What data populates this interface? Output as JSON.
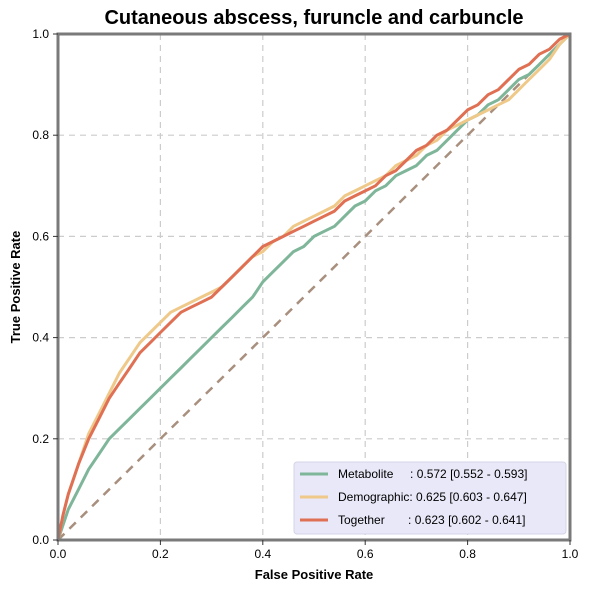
{
  "chart_data": {
    "type": "line",
    "title": "Cutaneous abscess, furuncle and carbuncle",
    "xlabel": "False Positive Rate",
    "ylabel": "True Positive Rate",
    "xlim": [
      0,
      1
    ],
    "ylim": [
      0,
      1
    ],
    "xticks": [
      "0.0",
      "0.2",
      "0.4",
      "0.6",
      "0.8",
      "1.0"
    ],
    "yticks": [
      "0.0",
      "0.2",
      "0.4",
      "0.6",
      "0.8",
      "1.0"
    ],
    "grid": true,
    "legend_position": "bottom-right",
    "series": [
      {
        "name": "Metabolite",
        "legend_label": "Metabolite     : 0.572 [0.552 - 0.593]",
        "color": "#7fb69a",
        "x": [
          0,
          0.01,
          0.02,
          0.04,
          0.06,
          0.08,
          0.1,
          0.12,
          0.14,
          0.16,
          0.18,
          0.2,
          0.22,
          0.24,
          0.26,
          0.28,
          0.3,
          0.32,
          0.34,
          0.36,
          0.38,
          0.4,
          0.42,
          0.44,
          0.46,
          0.48,
          0.5,
          0.52,
          0.54,
          0.56,
          0.58,
          0.6,
          0.62,
          0.64,
          0.66,
          0.68,
          0.7,
          0.72,
          0.74,
          0.76,
          0.78,
          0.8,
          0.82,
          0.84,
          0.86,
          0.88,
          0.9,
          0.92,
          0.94,
          0.96,
          0.98,
          1.0
        ],
        "y": [
          0,
          0.03,
          0.06,
          0.1,
          0.14,
          0.17,
          0.2,
          0.22,
          0.24,
          0.26,
          0.28,
          0.3,
          0.32,
          0.34,
          0.36,
          0.38,
          0.4,
          0.42,
          0.44,
          0.46,
          0.48,
          0.51,
          0.53,
          0.55,
          0.57,
          0.58,
          0.6,
          0.61,
          0.62,
          0.64,
          0.66,
          0.67,
          0.69,
          0.7,
          0.72,
          0.73,
          0.74,
          0.76,
          0.77,
          0.79,
          0.81,
          0.83,
          0.84,
          0.86,
          0.87,
          0.89,
          0.91,
          0.92,
          0.94,
          0.96,
          0.98,
          1.0
        ]
      },
      {
        "name": "Demographic",
        "legend_label": "Demographic: 0.625 [0.603 - 0.647]",
        "color": "#efc98a",
        "x": [
          0,
          0.01,
          0.02,
          0.04,
          0.06,
          0.08,
          0.1,
          0.12,
          0.14,
          0.16,
          0.18,
          0.2,
          0.22,
          0.24,
          0.26,
          0.28,
          0.3,
          0.32,
          0.34,
          0.36,
          0.38,
          0.4,
          0.42,
          0.44,
          0.46,
          0.48,
          0.5,
          0.52,
          0.54,
          0.56,
          0.58,
          0.6,
          0.62,
          0.64,
          0.66,
          0.68,
          0.7,
          0.72,
          0.74,
          0.76,
          0.78,
          0.8,
          0.82,
          0.84,
          0.86,
          0.88,
          0.9,
          0.92,
          0.94,
          0.96,
          0.98,
          1.0
        ],
        "y": [
          0,
          0.05,
          0.09,
          0.15,
          0.21,
          0.25,
          0.29,
          0.33,
          0.36,
          0.39,
          0.41,
          0.43,
          0.45,
          0.46,
          0.47,
          0.48,
          0.49,
          0.5,
          0.52,
          0.54,
          0.56,
          0.57,
          0.59,
          0.6,
          0.62,
          0.63,
          0.64,
          0.65,
          0.66,
          0.68,
          0.69,
          0.7,
          0.71,
          0.72,
          0.74,
          0.75,
          0.76,
          0.78,
          0.79,
          0.81,
          0.82,
          0.83,
          0.84,
          0.85,
          0.86,
          0.87,
          0.89,
          0.91,
          0.93,
          0.95,
          0.98,
          1.0
        ]
      },
      {
        "name": "Together",
        "legend_label": "Together       : 0.623 [0.602 - 0.641]",
        "color": "#e07054",
        "x": [
          0,
          0.01,
          0.02,
          0.04,
          0.06,
          0.08,
          0.1,
          0.12,
          0.14,
          0.16,
          0.18,
          0.2,
          0.22,
          0.24,
          0.26,
          0.28,
          0.3,
          0.32,
          0.34,
          0.36,
          0.38,
          0.4,
          0.42,
          0.44,
          0.46,
          0.48,
          0.5,
          0.52,
          0.54,
          0.56,
          0.58,
          0.6,
          0.62,
          0.64,
          0.66,
          0.68,
          0.7,
          0.72,
          0.74,
          0.76,
          0.78,
          0.8,
          0.82,
          0.84,
          0.86,
          0.88,
          0.9,
          0.92,
          0.94,
          0.96,
          0.98,
          1.0
        ],
        "y": [
          0,
          0.05,
          0.09,
          0.15,
          0.2,
          0.24,
          0.28,
          0.31,
          0.34,
          0.37,
          0.39,
          0.41,
          0.43,
          0.45,
          0.46,
          0.47,
          0.48,
          0.5,
          0.52,
          0.54,
          0.56,
          0.58,
          0.59,
          0.6,
          0.61,
          0.62,
          0.63,
          0.64,
          0.65,
          0.67,
          0.68,
          0.69,
          0.7,
          0.72,
          0.73,
          0.75,
          0.77,
          0.78,
          0.8,
          0.81,
          0.83,
          0.85,
          0.86,
          0.88,
          0.89,
          0.91,
          0.93,
          0.94,
          0.96,
          0.97,
          0.99,
          1.0
        ]
      }
    ],
    "reference_line": {
      "x": [
        0,
        1
      ],
      "y": [
        0,
        1
      ],
      "color": "#a88f7e",
      "style": "dashed"
    },
    "legend_background": "#e8e8f8"
  }
}
